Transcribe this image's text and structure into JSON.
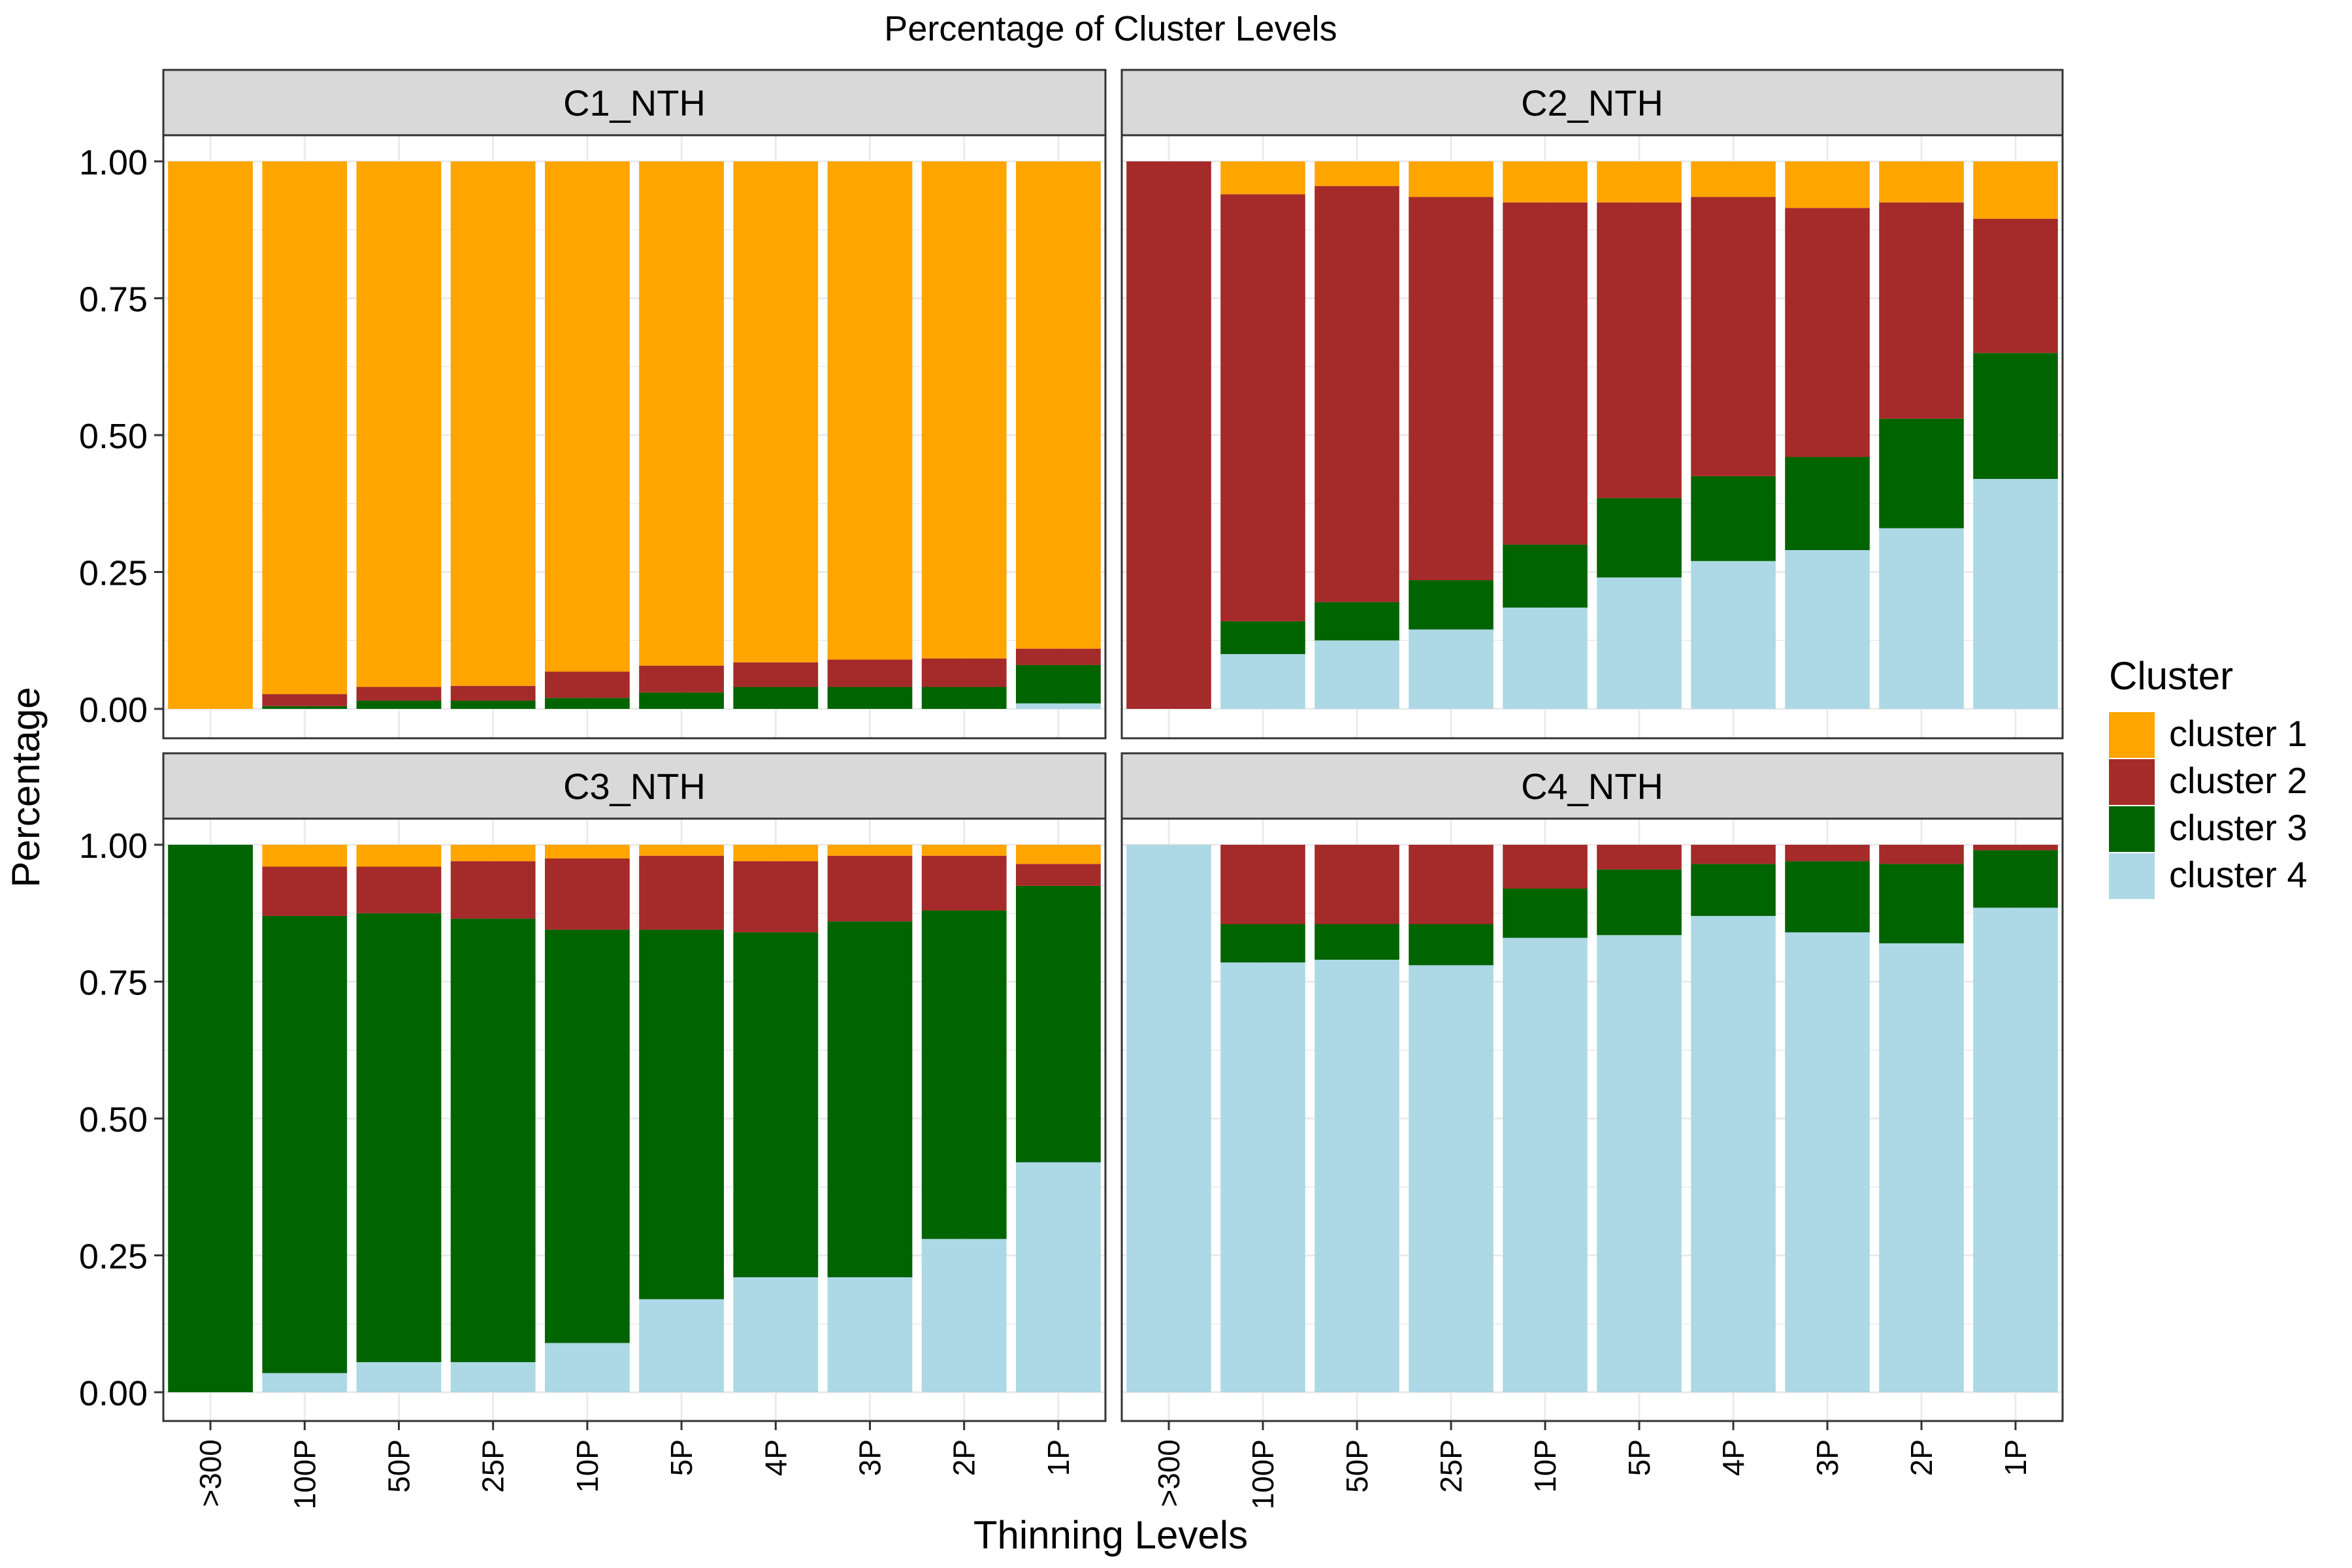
{
  "chart_data": {
    "type": "bar",
    "stacked": true,
    "title": "Percentage of Cluster Levels",
    "xlabel": "Thinning Levels",
    "ylabel": "Percentage",
    "ylim": [
      0,
      1
    ],
    "yticks": [
      "0.00",
      "0.25",
      "0.50",
      "0.75",
      "1.00"
    ],
    "categories": [
      ">300",
      "100P",
      "50P",
      "25P",
      "10P",
      "5P",
      "4P",
      "3P",
      "2P",
      "1P"
    ],
    "legend": {
      "title": "Cluster",
      "position": "right",
      "items": [
        {
          "key": "c1",
          "label": "cluster 1",
          "color": "#FFA500"
        },
        {
          "key": "c2",
          "label": "cluster 2",
          "color": "#A52A2A"
        },
        {
          "key": "c3",
          "label": "cluster 3",
          "color": "#006400"
        },
        {
          "key": "c4",
          "label": "cluster 4",
          "color": "#ADD8E6"
        }
      ]
    },
    "facets": [
      {
        "title": "C1_NTH",
        "series": [
          {
            "name": "cluster 4",
            "values": [
              0.0,
              0.0,
              0.0,
              0.0,
              0.0,
              0.0,
              0.0,
              0.0,
              0.0,
              0.01
            ]
          },
          {
            "name": "cluster 3",
            "values": [
              0.0,
              0.005,
              0.015,
              0.015,
              0.02,
              0.03,
              0.04,
              0.04,
              0.04,
              0.07
            ]
          },
          {
            "name": "cluster 2",
            "values": [
              0.0,
              0.022,
              0.025,
              0.027,
              0.048,
              0.049,
              0.045,
              0.05,
              0.052,
              0.03
            ]
          },
          {
            "name": "cluster 1",
            "values": [
              1.0,
              0.973,
              0.96,
              0.958,
              0.932,
              0.921,
              0.915,
              0.91,
              0.908,
              0.89
            ]
          }
        ]
      },
      {
        "title": "C2_NTH",
        "series": [
          {
            "name": "cluster 4",
            "values": [
              0.0,
              0.1,
              0.125,
              0.145,
              0.185,
              0.24,
              0.27,
              0.29,
              0.33,
              0.42
            ]
          },
          {
            "name": "cluster 3",
            "values": [
              0.0,
              0.06,
              0.07,
              0.09,
              0.115,
              0.145,
              0.155,
              0.17,
              0.2,
              0.23
            ]
          },
          {
            "name": "cluster 2",
            "values": [
              1.0,
              0.78,
              0.76,
              0.7,
              0.625,
              0.54,
              0.51,
              0.455,
              0.395,
              0.245
            ]
          },
          {
            "name": "cluster 1",
            "values": [
              0.0,
              0.06,
              0.045,
              0.065,
              0.075,
              0.075,
              0.065,
              0.085,
              0.075,
              0.105
            ]
          }
        ]
      },
      {
        "title": "C3_NTH",
        "series": [
          {
            "name": "cluster 4",
            "values": [
              0.0,
              0.035,
              0.055,
              0.055,
              0.09,
              0.17,
              0.21,
              0.21,
              0.28,
              0.42
            ]
          },
          {
            "name": "cluster 3",
            "values": [
              1.0,
              0.835,
              0.82,
              0.81,
              0.755,
              0.675,
              0.63,
              0.65,
              0.6,
              0.505
            ]
          },
          {
            "name": "cluster 2",
            "values": [
              0.0,
              0.09,
              0.085,
              0.105,
              0.13,
              0.135,
              0.13,
              0.12,
              0.1,
              0.04
            ]
          },
          {
            "name": "cluster 1",
            "values": [
              0.0,
              0.04,
              0.04,
              0.03,
              0.025,
              0.02,
              0.03,
              0.02,
              0.02,
              0.035
            ]
          }
        ]
      },
      {
        "title": "C4_NTH",
        "series": [
          {
            "name": "cluster 4",
            "values": [
              1.0,
              0.785,
              0.79,
              0.78,
              0.83,
              0.835,
              0.87,
              0.84,
              0.82,
              0.885
            ]
          },
          {
            "name": "cluster 3",
            "values": [
              0.0,
              0.07,
              0.065,
              0.075,
              0.09,
              0.12,
              0.095,
              0.13,
              0.145,
              0.105
            ]
          },
          {
            "name": "cluster 2",
            "values": [
              0.0,
              0.145,
              0.145,
              0.145,
              0.08,
              0.045,
              0.035,
              0.03,
              0.035,
              0.01
            ]
          },
          {
            "name": "cluster 1",
            "values": [
              0.0,
              0.0,
              0.0,
              0.0,
              0.0,
              0.0,
              0.0,
              0.0,
              0.0,
              0.0
            ]
          }
        ]
      }
    ]
  }
}
